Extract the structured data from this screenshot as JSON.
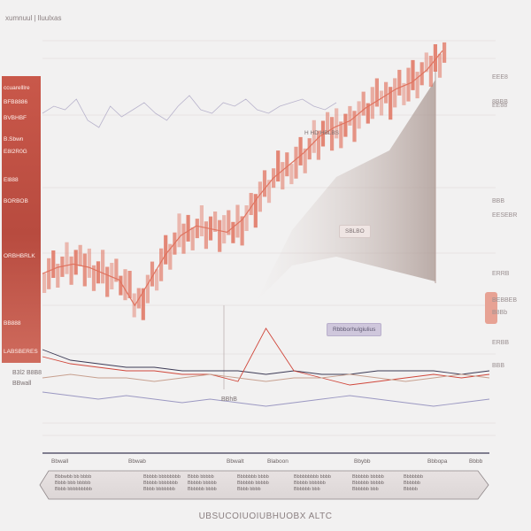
{
  "header": {
    "title": "xumnuul | lluulxas"
  },
  "left_panel": {
    "labels": [
      "ccuarelllre",
      "BFB8886",
      "BVBHBF",
      "B.Sbwn",
      "E8I2R0G",
      "El888",
      "BORBOB",
      "ORBHBRLK",
      "BB888",
      "LABSBERES"
    ]
  },
  "chart_data": {
    "type": "line",
    "title": "",
    "xlabel": "",
    "ylabel": "",
    "series": [
      {
        "color": "#e0735f",
        "values": [
          28,
          30,
          31,
          30,
          28,
          26,
          18,
          26,
          34,
          40,
          43,
          42,
          41,
          45,
          52,
          58,
          62,
          66,
          71,
          74,
          76,
          80,
          83,
          86,
          88,
          92,
          98
        ]
      },
      {
        "color": "#b8b3cc",
        "values": [
          70,
          72,
          71,
          74,
          68,
          66,
          72,
          69,
          71,
          73,
          70,
          68,
          72,
          75,
          71,
          70,
          73,
          72,
          74,
          71,
          70,
          72,
          73,
          74,
          72,
          71,
          73
        ]
      }
    ],
    "lower_series": [
      {
        "color": "#3c3a55",
        "values": [
          20,
          17,
          16,
          15,
          15,
          14,
          14,
          14,
          13,
          14,
          13,
          13,
          14,
          14,
          14,
          13,
          14
        ]
      },
      {
        "color": "#d0463a",
        "values": [
          18,
          16,
          15,
          14,
          14,
          13,
          13,
          11,
          26,
          14,
          12,
          10,
          11,
          12,
          13,
          12,
          13
        ]
      },
      {
        "color": "#c7a08f",
        "values": [
          12,
          13,
          12,
          12,
          11,
          12,
          13,
          12,
          11,
          12,
          12,
          13,
          12,
          11,
          12,
          13,
          12
        ]
      },
      {
        "color": "#9b98c2",
        "values": [
          8,
          7,
          6,
          7,
          6,
          5,
          6,
          5,
          4,
          5,
          6,
          7,
          6,
          5,
          4,
          5,
          6
        ]
      }
    ],
    "grid": true
  },
  "callouts": {
    "c1": "H HD HBLBS",
    "c2": "SBLBO",
    "c3": "Rbbborhulgiulius"
  },
  "right_labels": [
    "EEE8",
    "8BBB",
    "EE88",
    "BBB",
    "EESEBR",
    "ERRB",
    "BEBBEB",
    "B8Bb",
    "ERBB",
    "BBB"
  ],
  "lower_left": [
    "B3l2 B8B8",
    "BBwall"
  ],
  "lower_annot": "BBhB",
  "x_ticks": [
    "Bbwall",
    "Bbwab",
    "Bbwalt",
    "Blaboon",
    "Bbybb",
    "Bbbopa",
    "Bbbb"
  ],
  "footer_columns": [
    [
      "Bbbwbb bb bbbb",
      "Bbbb bbb bbbbb",
      "Bbbb bbbbbbbbb"
    ],
    [
      "Bbbbb bbbbbbbb",
      "Bbbbb bbbbbbb",
      "Bbbb bbbbbbb"
    ],
    [
      "Bbbb bbbbb",
      "Bbbbb bbbbb",
      "Bbbbbb bbbb"
    ],
    [
      "Bbbbbbb bbbb",
      "Bbbbbb bbbbb",
      "Bbbb bbbb"
    ],
    [
      "Bbbbbbbbb bbbb",
      "Bbbbb bbbbbb",
      "Bbbbbb bbb"
    ],
    [
      "Bbbbbb bbbbb",
      "Bbbbbb bbbbb",
      "Bbbbbb bbb"
    ],
    [
      "Bbbbbbb",
      "Bbbbbb",
      "Bbbbb"
    ]
  ],
  "caption": "UBSUCOIUOIUBHUOBX ALTC"
}
